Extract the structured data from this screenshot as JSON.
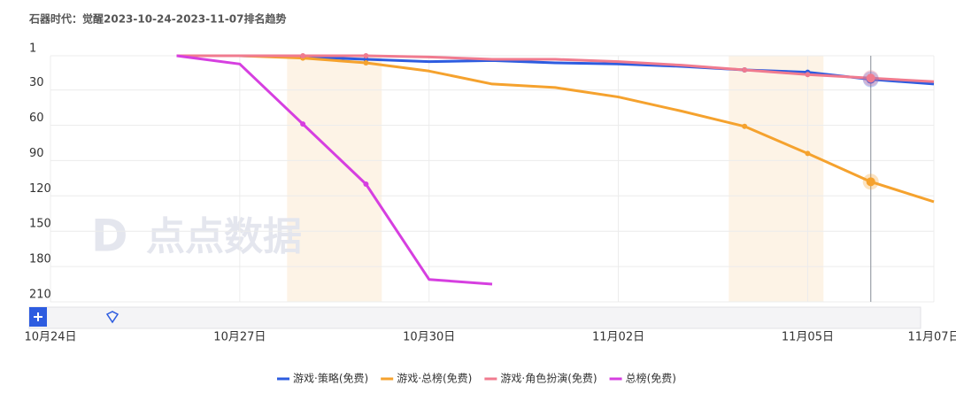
{
  "chart_data": {
    "type": "line",
    "title": "石器时代：觉醒2023-10-24-2023-11-07排名趋势",
    "watermark": "点点数据",
    "categories": [
      "10月24日",
      null,
      null,
      "10月27日",
      null,
      null,
      "10月30日",
      null,
      null,
      "11月02日",
      null,
      null,
      "11月05日",
      null,
      "11月07日"
    ],
    "ylim": [
      1,
      210
    ],
    "y_inverted": true,
    "yticks": [
      1,
      30,
      60,
      90,
      120,
      150,
      180,
      210
    ],
    "grid": true,
    "legend": "bottom",
    "series": [
      {
        "name": "游戏·策略(免费)",
        "color": "#2d5ce0",
        "values": [
          null,
          null,
          1,
          1,
          2,
          4,
          6,
          5,
          7,
          8,
          10,
          13,
          15,
          21,
          25
        ]
      },
      {
        "name": "游戏·总榜(免费)",
        "color": "#f5a22e",
        "values": [
          null,
          null,
          1,
          1,
          3,
          7,
          14,
          25,
          28,
          36,
          48,
          61,
          84,
          108,
          125
        ]
      },
      {
        "name": "游戏·角色扮演(免费)",
        "color": "#f07b8f",
        "values": [
          null,
          null,
          1,
          1,
          1,
          1,
          2,
          4,
          4,
          6,
          9,
          13,
          17,
          20,
          23
        ]
      },
      {
        "name": "总榜(免费)",
        "color": "#d63fe0",
        "values": [
          null,
          null,
          1,
          8,
          59,
          110,
          191,
          195,
          null,
          null,
          null,
          null,
          null,
          null,
          null
        ]
      }
    ]
  }
}
